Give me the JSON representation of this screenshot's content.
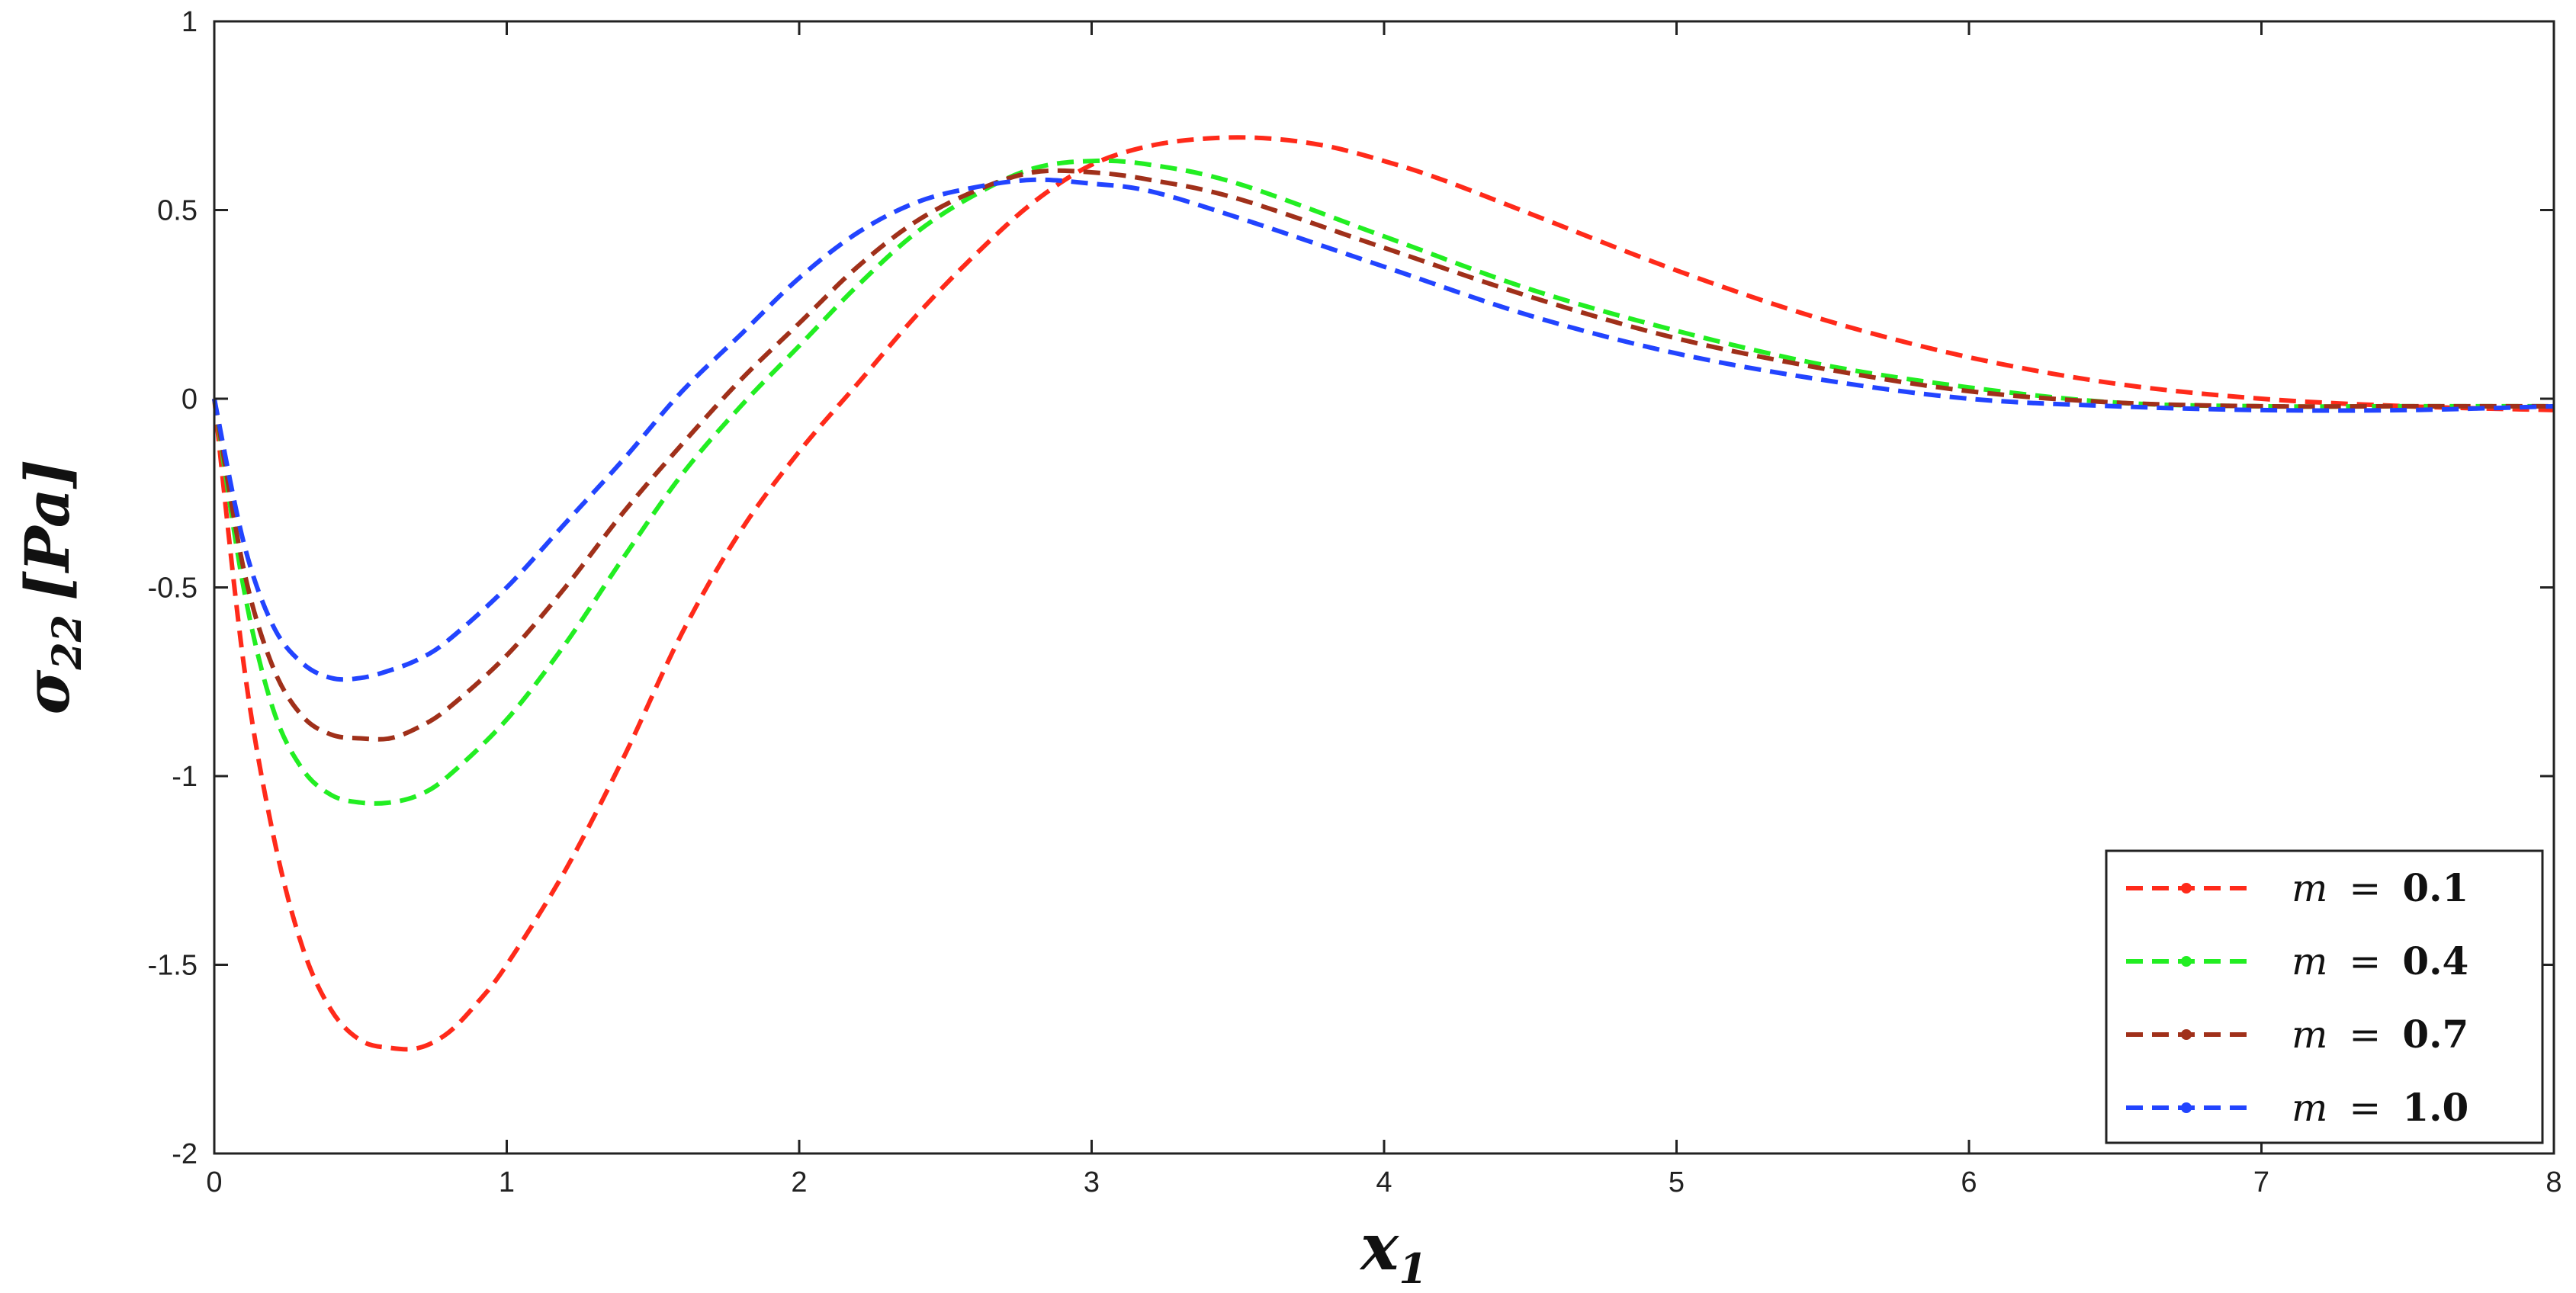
{
  "chart_data": {
    "type": "line",
    "xlabel": "x",
    "xlabel_sub": "1",
    "ylabel": "σ",
    "ylabel_sub": "22",
    "ylabel_unit": "[Pa]",
    "xlim": [
      0,
      8
    ],
    "ylim": [
      -2,
      1
    ],
    "xticks": [
      "0",
      "1",
      "2",
      "3",
      "4",
      "5",
      "6",
      "7",
      "8"
    ],
    "yticks": [
      "1",
      "0.5",
      "0",
      "-0.5",
      "-1",
      "-1.5",
      "-2"
    ],
    "grid": false,
    "legend_position": "bottom-right",
    "series": [
      {
        "name": "m = 0.1",
        "var": "m",
        "op": "=",
        "num": "0.1",
        "color": "#ff2a1a",
        "x": [
          0,
          0.1,
          0.2,
          0.3,
          0.4,
          0.5,
          0.6,
          0.7,
          0.8,
          0.9,
          1.0,
          1.2,
          1.4,
          1.6,
          1.8,
          2.0,
          2.2,
          2.4,
          2.6,
          2.8,
          3.0,
          3.2,
          3.4,
          3.6,
          3.8,
          4.0,
          4.2,
          4.5,
          5.0,
          5.5,
          6.0,
          6.5,
          7.0,
          7.5,
          8.0
        ],
        "y": [
          0,
          -0.7,
          -1.15,
          -1.45,
          -1.62,
          -1.7,
          -1.72,
          -1.72,
          -1.68,
          -1.6,
          -1.5,
          -1.25,
          -0.95,
          -0.62,
          -0.35,
          -0.14,
          0.04,
          0.22,
          0.38,
          0.52,
          0.62,
          0.67,
          0.69,
          0.69,
          0.67,
          0.63,
          0.58,
          0.49,
          0.34,
          0.21,
          0.11,
          0.04,
          0.0,
          -0.02,
          -0.03
        ]
      },
      {
        "name": "m = 0.4",
        "var": "m",
        "op": "=",
        "num": "0.4",
        "color": "#22ee22",
        "x": [
          0,
          0.1,
          0.2,
          0.3,
          0.4,
          0.5,
          0.6,
          0.7,
          0.8,
          1.0,
          1.2,
          1.4,
          1.6,
          1.8,
          2.0,
          2.2,
          2.4,
          2.6,
          2.8,
          3.0,
          3.2,
          3.5,
          4.0,
          4.5,
          5.0,
          5.5,
          6.0,
          6.5,
          7.0,
          7.5,
          8.0
        ],
        "y": [
          0,
          -0.5,
          -0.82,
          -0.98,
          -1.05,
          -1.07,
          -1.07,
          -1.05,
          -1.0,
          -0.85,
          -0.65,
          -0.42,
          -0.2,
          -0.02,
          0.14,
          0.3,
          0.44,
          0.54,
          0.61,
          0.63,
          0.62,
          0.57,
          0.43,
          0.29,
          0.18,
          0.09,
          0.03,
          -0.01,
          -0.02,
          -0.02,
          -0.02
        ]
      },
      {
        "name": "m = 0.7",
        "var": "m",
        "op": "=",
        "num": "0.7",
        "color": "#a0301a",
        "x": [
          0,
          0.1,
          0.2,
          0.3,
          0.4,
          0.5,
          0.6,
          0.7,
          0.8,
          1.0,
          1.2,
          1.4,
          1.6,
          1.8,
          2.0,
          2.2,
          2.4,
          2.6,
          2.8,
          3.0,
          3.2,
          3.5,
          4.0,
          4.5,
          5.0,
          5.5,
          6.0,
          6.5,
          7.0,
          7.5,
          8.0
        ],
        "y": [
          0,
          -0.45,
          -0.71,
          -0.84,
          -0.89,
          -0.9,
          -0.9,
          -0.87,
          -0.82,
          -0.68,
          -0.5,
          -0.3,
          -0.12,
          0.05,
          0.2,
          0.35,
          0.47,
          0.55,
          0.6,
          0.6,
          0.58,
          0.53,
          0.4,
          0.27,
          0.16,
          0.08,
          0.02,
          -0.01,
          -0.02,
          -0.02,
          -0.02
        ]
      },
      {
        "name": "m = 1.0",
        "var": "m",
        "op": "=",
        "num": "1.0",
        "color": "#2244ff",
        "x": [
          0,
          0.1,
          0.2,
          0.3,
          0.4,
          0.5,
          0.6,
          0.7,
          0.8,
          1.0,
          1.2,
          1.4,
          1.6,
          1.8,
          2.0,
          2.2,
          2.4,
          2.6,
          2.8,
          3.0,
          3.2,
          3.5,
          4.0,
          4.5,
          5.0,
          5.5,
          6.0,
          6.5,
          7.0,
          7.5,
          8.0
        ],
        "y": [
          0,
          -0.38,
          -0.6,
          -0.7,
          -0.74,
          -0.74,
          -0.72,
          -0.69,
          -0.64,
          -0.5,
          -0.33,
          -0.16,
          0.02,
          0.17,
          0.32,
          0.44,
          0.52,
          0.56,
          0.58,
          0.57,
          0.55,
          0.48,
          0.35,
          0.22,
          0.12,
          0.05,
          0.0,
          -0.02,
          -0.03,
          -0.03,
          -0.02
        ]
      }
    ]
  }
}
